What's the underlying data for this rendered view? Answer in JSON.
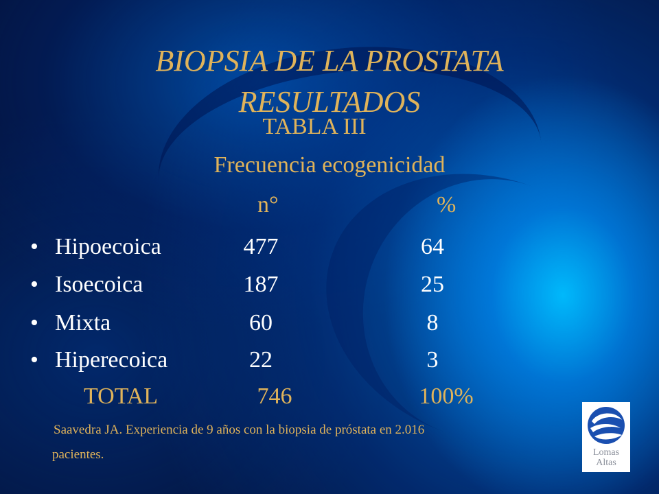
{
  "slide": {
    "title_line1": "BIOPSIA DE LA PROSTATA",
    "title_line2": "RESULTADOS",
    "table_label": "TABLA III",
    "table_subject": "Frecuencia ecogenicidad",
    "col_n": "n°",
    "col_pct": "%",
    "rows": [
      {
        "bullet": "•",
        "label": "Hipoecoica",
        "n": "477",
        "pct": "64"
      },
      {
        "bullet": "•",
        "label": "Isoecoica",
        "n": "187",
        "pct": "25"
      },
      {
        "bullet": "•",
        "label": "Mixta",
        "n": "60",
        "pct": "8"
      },
      {
        "bullet": "•",
        "label": "Hiperecoica",
        "n": "22",
        "pct": "3"
      }
    ],
    "total": {
      "label": "TOTAL",
      "n": "746",
      "pct": "100%"
    },
    "reference_line1": "Saavedra JA. Experiencia de 9 años con la biopsia  de próstata en 2.016",
    "reference_line2": "pacientes.",
    "logo": {
      "line1": "Lomas",
      "line2": "Altas",
      "icon": "lomas-altas-swirl-logo"
    }
  },
  "colors": {
    "accent_gold": "#e0b35a",
    "text_white": "#ffffff",
    "background_navy": "#04123a",
    "background_blue": "#00a0f0",
    "logo_blue": "#1a4fb0"
  }
}
